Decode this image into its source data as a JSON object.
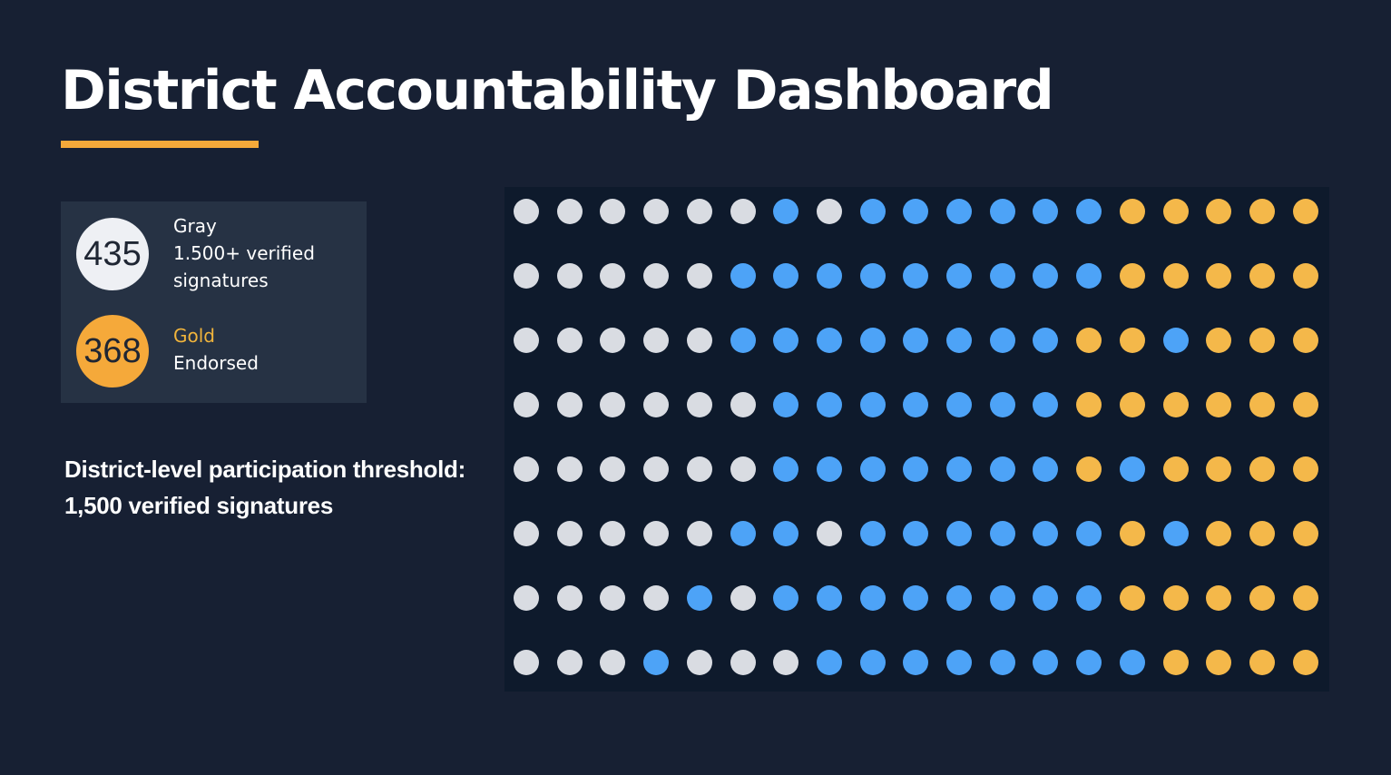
{
  "title": "District Accountability Dashboard",
  "legend": {
    "gray": {
      "count": "435",
      "label": "Gray",
      "description_line1": "1.500+ verified",
      "description_line2": "signatures"
    },
    "gold": {
      "count": "368",
      "label": "Gold",
      "description_line1": "Endorsed"
    }
  },
  "threshold": {
    "line1": "District-level participation threshold:",
    "line2": "1,500 verified signatures"
  },
  "colors": {
    "background": "#172033",
    "panel": "#0e1a2c",
    "card": "#263244",
    "accent": "#f5a93a",
    "gray": "#d9dce2",
    "blue": "#4da3f7",
    "gold": "#f4b84a"
  },
  "dot_grid": {
    "rows": 8,
    "columns": 19,
    "legend": {
      "G": "gray",
      "B": "blue",
      "Y": "gold"
    },
    "cells": [
      "GGGGGGBGBBBBBBYYYYY",
      "GGGGGBBBBBBBBBYYYYY",
      "GGGGGBBBBBBBBYYBYYY",
      "GGGGGGBBBBBBBYYYYYY",
      "GGGGGGBBBBBBBYBYYYY",
      "GGGGGBBGBBBBBBYBYYY",
      "GGGGBGBBBBBBBBYYYYY",
      "GGGBGGGBBBBBBBBYYYY"
    ]
  }
}
